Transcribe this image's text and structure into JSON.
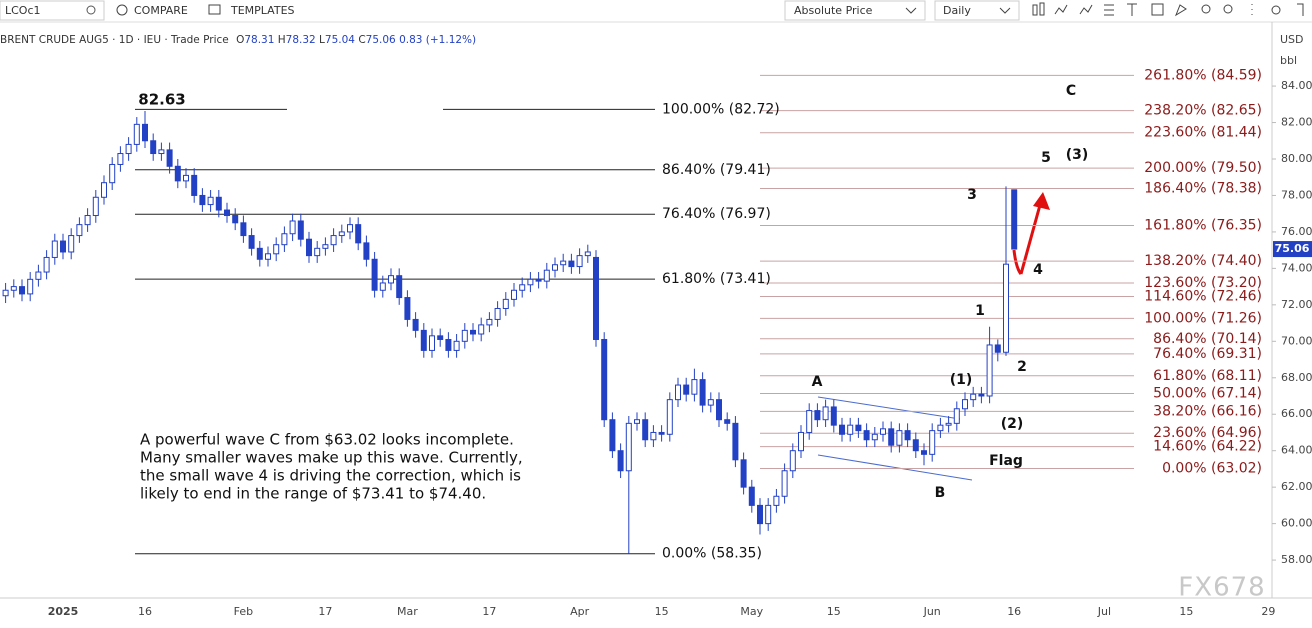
{
  "toolbar": {
    "symbol": "LCOc1",
    "compare": "COMPARE",
    "templates": "TEMPLATES",
    "price_mode": "Absolute Price",
    "interval": "Daily"
  },
  "legend": {
    "name": "BRENT CRUDE AUG5 · 1D · IEU · Trade Price",
    "o": "O",
    "h": "H",
    "l": "L",
    "c": "C",
    "change": "0.83 (+1.12%)"
  },
  "axis_panel": {
    "currency": "USD",
    "unit": "bbl"
  },
  "watermark": "FX678",
  "chart_data": {
    "type": "candlestick",
    "categories": [
      null,
      null,
      null,
      null,
      null,
      null,
      null,
      "2025",
      null,
      null,
      null,
      null,
      null,
      null,
      null,
      null,
      null,
      "16",
      null,
      null,
      null,
      null,
      null,
      null,
      null,
      null,
      null,
      null,
      null,
      "Feb",
      null,
      null,
      null,
      null,
      null,
      null,
      null,
      null,
      null,
      "17",
      null,
      null,
      null,
      null,
      null,
      null,
      null,
      null,
      null,
      "Mar",
      null,
      null,
      null,
      null,
      null,
      null,
      null,
      null,
      null,
      "17",
      null,
      null,
      null,
      null,
      null,
      null,
      null,
      null,
      null,
      null,
      "Apr",
      null,
      null,
      null,
      null,
      null,
      null,
      null,
      null,
      null,
      "15",
      null,
      null,
      null,
      null,
      null,
      null,
      null,
      null,
      null,
      null,
      "May",
      null,
      null,
      null,
      null,
      null,
      null,
      null,
      null,
      null,
      "15",
      null,
      null,
      null,
      null,
      null,
      null,
      null,
      null,
      null,
      null,
      null,
      "Jun",
      null,
      null,
      null,
      null,
      null,
      null,
      null,
      null,
      null,
      "16",
      null,
      null,
      null,
      null,
      null,
      null,
      null,
      null,
      null,
      null,
      "Jul",
      null,
      null,
      null,
      null,
      null,
      null,
      null,
      null,
      null,
      "15",
      null,
      null,
      null,
      null,
      null,
      null,
      null,
      null,
      null,
      "29"
    ],
    "open": [
      72.5,
      72.8,
      73.0,
      72.6,
      73.4,
      73.8,
      74.6,
      75.5,
      74.9,
      75.8,
      76.4,
      76.9,
      77.9,
      78.7,
      79.7,
      80.3,
      80.8,
      81.9,
      81.0,
      80.3,
      80.5,
      79.6,
      78.8,
      79.1,
      78.0,
      77.5,
      77.9,
      77.2,
      76.9,
      76.5,
      75.8,
      75.1,
      74.5,
      74.8,
      75.3,
      75.9,
      76.6,
      75.6,
      74.7,
      75.1,
      75.3,
      75.8,
      76.0,
      76.4,
      75.4,
      74.5,
      72.8,
      73.2,
      73.6,
      72.4,
      71.2,
      70.6,
      69.5,
      70.3,
      70.1,
      69.5,
      70.0,
      70.6,
      70.4,
      70.9,
      71.2,
      71.8,
      72.3,
      72.8,
      73.1,
      73.4,
      73.3,
      73.9,
      74.2,
      74.4,
      74.1,
      74.7,
      74.6,
      70.1,
      65.7,
      64.0,
      62.9,
      65.5,
      65.7,
      64.6,
      65.0,
      64.9,
      66.8,
      67.6,
      67.1,
      67.9,
      66.5,
      66.8,
      65.7,
      65.5,
      63.5,
      62.0,
      61.0,
      60.0,
      61.0,
      61.5,
      62.9,
      64.0,
      65.0,
      66.2,
      65.7,
      66.4,
      65.4,
      64.9,
      65.4,
      65.1,
      64.6,
      64.9,
      65.2,
      64.3,
      65.1,
      64.6,
      64.0,
      63.8,
      65.1,
      65.4,
      65.5,
      66.3,
      66.8,
      67.1,
      67.0,
      69.8,
      69.4,
      78.31,
      null,
      null,
      null,
      null,
      null,
      null,
      null,
      null,
      null,
      null,
      null,
      null,
      null,
      null,
      null,
      null,
      null,
      null,
      null,
      null,
      null,
      null,
      null,
      null,
      null,
      null,
      null,
      null,
      null,
      null,
      null
    ],
    "high": [
      73.2,
      73.4,
      73.4,
      73.8,
      74.2,
      75.0,
      75.9,
      75.9,
      76.2,
      76.8,
      77.3,
      78.3,
      79.1,
      80.1,
      80.7,
      81.2,
      82.3,
      82.63,
      81.4,
      80.9,
      80.9,
      80.0,
      79.5,
      79.5,
      78.4,
      78.3,
      78.3,
      77.6,
      77.3,
      76.9,
      76.2,
      75.5,
      75.2,
      75.7,
      76.3,
      77.0,
      77.0,
      76.0,
      75.5,
      75.7,
      76.2,
      76.4,
      76.8,
      76.8,
      75.8,
      74.9,
      73.6,
      74.0,
      74.0,
      72.8,
      71.6,
      71.0,
      70.7,
      70.7,
      70.5,
      70.4,
      71.0,
      71.0,
      71.3,
      71.6,
      72.2,
      72.7,
      73.2,
      73.5,
      73.8,
      73.8,
      74.3,
      74.6,
      74.8,
      74.8,
      75.1,
      75.3,
      75.0,
      70.5,
      66.1,
      64.4,
      65.9,
      66.1,
      66.1,
      65.4,
      65.4,
      67.2,
      68.0,
      68.0,
      68.5,
      68.3,
      67.2,
      67.2,
      66.1,
      65.9,
      63.9,
      62.4,
      61.4,
      61.4,
      61.9,
      63.3,
      64.4,
      65.4,
      66.6,
      66.6,
      66.8,
      66.8,
      65.8,
      65.8,
      65.8,
      65.5,
      65.3,
      65.6,
      65.6,
      65.5,
      65.5,
      65.0,
      64.4,
      65.5,
      65.8,
      65.9,
      66.7,
      67.2,
      67.5,
      67.5,
      70.8,
      70.1,
      78.5,
      78.32,
      null,
      null,
      null,
      null,
      null,
      null,
      null,
      null,
      null,
      null,
      null,
      null,
      null,
      null,
      null,
      null,
      null,
      null,
      null,
      null,
      null,
      null,
      null,
      null,
      null,
      null,
      null,
      null,
      null,
      null,
      null
    ],
    "low": [
      72.1,
      72.4,
      72.2,
      72.2,
      73.0,
      73.4,
      74.2,
      74.5,
      74.5,
      75.4,
      76.0,
      76.5,
      77.5,
      78.3,
      79.3,
      79.9,
      80.4,
      80.6,
      79.9,
      79.9,
      79.2,
      78.4,
      78.4,
      77.6,
      77.1,
      77.1,
      76.8,
      76.5,
      76.1,
      75.4,
      74.7,
      74.1,
      74.1,
      74.4,
      74.9,
      75.5,
      75.2,
      74.3,
      74.3,
      74.7,
      74.9,
      75.4,
      75.6,
      75.0,
      74.1,
      72.4,
      72.4,
      72.8,
      72.0,
      70.8,
      70.2,
      69.1,
      69.1,
      69.7,
      69.1,
      69.1,
      69.6,
      70.0,
      70.0,
      70.5,
      70.8,
      71.4,
      71.9,
      72.4,
      72.7,
      72.9,
      72.9,
      73.5,
      73.8,
      73.7,
      73.7,
      74.3,
      69.7,
      65.3,
      63.6,
      62.5,
      58.35,
      65.1,
      64.2,
      64.2,
      64.5,
      64.5,
      66.4,
      66.7,
      66.7,
      66.1,
      66.1,
      65.3,
      65.1,
      63.1,
      61.6,
      60.6,
      59.4,
      59.6,
      60.6,
      61.1,
      62.5,
      63.6,
      64.6,
      65.3,
      65.3,
      65.0,
      64.5,
      64.5,
      64.7,
      64.2,
      64.2,
      64.5,
      63.9,
      63.9,
      64.2,
      63.6,
      63.2,
      63.4,
      64.7,
      65.0,
      65.1,
      65.9,
      66.4,
      66.6,
      66.6,
      68.9,
      69.2,
      75.04,
      null,
      null,
      null,
      null,
      null,
      null,
      null,
      null,
      null,
      null,
      null,
      null,
      null,
      null,
      null,
      null,
      null,
      null,
      null,
      null,
      null,
      null,
      null,
      null,
      null,
      null,
      null,
      null,
      null,
      null,
      null
    ],
    "close": [
      72.8,
      73.0,
      72.6,
      73.4,
      73.8,
      74.6,
      75.5,
      74.9,
      75.8,
      76.4,
      76.9,
      77.9,
      78.7,
      79.7,
      80.3,
      80.8,
      81.9,
      81.0,
      80.3,
      80.5,
      79.6,
      78.8,
      79.1,
      78.0,
      77.5,
      77.9,
      77.2,
      76.9,
      76.5,
      75.8,
      75.1,
      74.5,
      74.8,
      75.3,
      75.9,
      76.6,
      75.6,
      74.7,
      75.1,
      75.3,
      75.8,
      76.0,
      76.4,
      75.4,
      74.5,
      72.8,
      73.2,
      73.6,
      72.4,
      71.2,
      70.6,
      69.5,
      70.3,
      70.1,
      69.5,
      70.0,
      70.6,
      70.4,
      70.9,
      71.2,
      71.8,
      72.3,
      72.8,
      73.1,
      73.4,
      73.3,
      73.9,
      74.2,
      74.4,
      74.1,
      74.7,
      74.9,
      70.1,
      65.7,
      64.0,
      62.9,
      65.5,
      65.7,
      64.6,
      65.0,
      64.9,
      66.8,
      67.6,
      67.1,
      67.9,
      66.5,
      66.8,
      65.7,
      65.5,
      63.5,
      62.0,
      61.0,
      60.0,
      61.0,
      61.5,
      62.9,
      64.0,
      65.0,
      66.2,
      65.7,
      66.4,
      65.4,
      64.9,
      65.4,
      65.1,
      64.6,
      64.9,
      65.2,
      64.3,
      65.1,
      64.6,
      64.0,
      63.8,
      65.1,
      65.4,
      65.5,
      66.3,
      66.8,
      67.1,
      67.0,
      69.8,
      69.4,
      74.23,
      75.06,
      null,
      null,
      null,
      null,
      null,
      null,
      null,
      null,
      null,
      null,
      null,
      null,
      null,
      null,
      null,
      null,
      null,
      null,
      null,
      null,
      null,
      null,
      null,
      null,
      null,
      null,
      null,
      null,
      null,
      null,
      null
    ],
    "up_color": "#ffffff",
    "down_color": "#2341c5",
    "edge_color": "#2341c5",
    "ylim": [
      55.92,
      87.35
    ],
    "yticks": [
      {
        "value": 58,
        "label": "58.00"
      },
      {
        "value": 60,
        "label": "60.00"
      },
      {
        "value": 62,
        "label": "62.00"
      },
      {
        "value": 64,
        "label": "64.00"
      },
      {
        "value": 66,
        "label": "66.00"
      },
      {
        "value": 68,
        "label": "68.00"
      },
      {
        "value": 70,
        "label": "70.00"
      },
      {
        "value": 72,
        "label": "72.00"
      },
      {
        "value": 74,
        "label": "74.00"
      },
      {
        "value": 76,
        "label": "76.00"
      },
      {
        "value": 78,
        "label": "78.00"
      },
      {
        "value": 80,
        "label": "80.00"
      },
      {
        "value": 82,
        "label": "82.00"
      },
      {
        "value": 84,
        "label": "84.00"
      }
    ],
    "grid": false,
    "fib_left": [
      {
        "value": 82.72,
        "label": "100.00% (82.72)"
      },
      {
        "value": 79.41,
        "label": "86.40% (79.41)"
      },
      {
        "value": 76.97,
        "label": "76.40% (76.97)"
      },
      {
        "value": 73.41,
        "label": "61.80% (73.41)"
      },
      {
        "value": 58.35,
        "label": "0.00% (58.35)"
      }
    ],
    "fib_right": [
      {
        "value": 84.59,
        "label": "261.80% (84.59)"
      },
      {
        "value": 82.65,
        "label": "238.20% (82.65)"
      },
      {
        "value": 81.44,
        "label": "223.60% (81.44)"
      },
      {
        "value": 79.5,
        "label": "200.00% (79.50)"
      },
      {
        "value": 78.38,
        "label": "186.40% (78.38)"
      },
      {
        "value": 76.35,
        "label": "161.80% (76.35)"
      },
      {
        "value": 74.4,
        "label": "138.20% (74.40)"
      },
      {
        "value": 73.2,
        "label": "123.60% (73.20)"
      },
      {
        "value": 72.46,
        "label": "114.60% (72.46)"
      },
      {
        "value": 71.26,
        "label": "100.00% (71.26)"
      },
      {
        "value": 70.14,
        "label": "86.40% (70.14)"
      },
      {
        "value": 69.31,
        "label": "76.40% (69.31)"
      },
      {
        "value": 68.11,
        "label": "61.80% (68.11)"
      },
      {
        "value": 67.14,
        "label": "50.00% (67.14)"
      },
      {
        "value": 66.16,
        "label": "38.20% (66.16)"
      },
      {
        "value": 64.96,
        "label": "23.60% (64.96)"
      },
      {
        "value": 64.22,
        "label": "14.60% (64.22)"
      },
      {
        "value": 63.02,
        "label": "0.00% (63.02)"
      }
    ],
    "annotations": [
      "82.63",
      "C",
      "5",
      "(3)",
      "3",
      "4",
      "1",
      "2",
      "(1)",
      "(2)",
      "A",
      "B",
      "Flag"
    ],
    "commentary": [
      "A powerful wave C from $63.02 looks incomplete.",
      "Many smaller waves make up this wave. Currently,",
      "the small wave 4 is driving the correction, which is",
      "likely to end in the range of $73.41 to $74.40."
    ]
  }
}
